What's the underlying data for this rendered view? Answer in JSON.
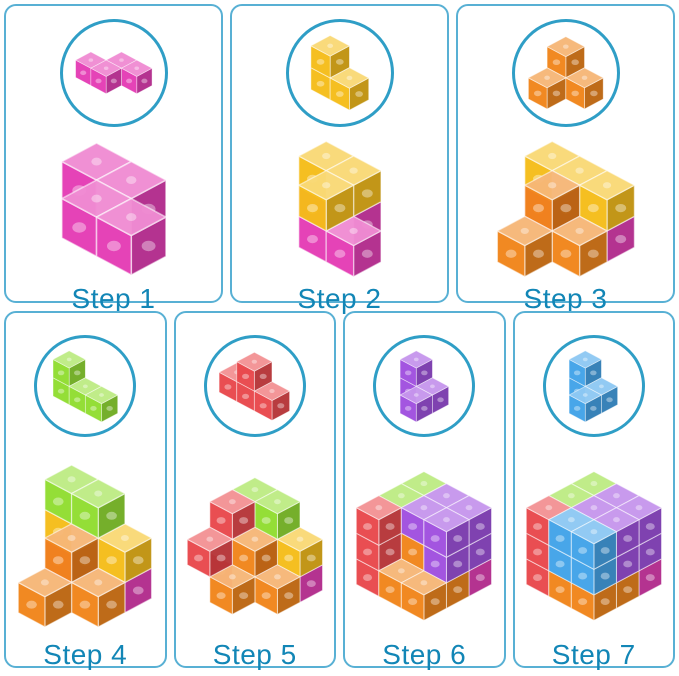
{
  "page": {
    "background": "#ffffff",
    "panel_border": "#58b0d4",
    "circle_border": "#2f9ec6",
    "label_color": "#1286b6"
  },
  "layout": {
    "row_counts": [
      3,
      4
    ]
  },
  "palette": {
    "pink": "#e337b2",
    "yellow": "#f5bb13",
    "orange": "#f08114",
    "green": "#8edc2b",
    "red": "#e84347",
    "purple": "#9d4ade",
    "blue": "#3da0e8"
  },
  "steps": [
    {
      "label": "Step 1",
      "piece_color": "pink",
      "piece": [
        [
          1,
          0,
          0
        ],
        [
          2,
          0,
          0
        ],
        [
          0,
          1,
          0
        ],
        [
          1,
          1,
          0
        ]
      ],
      "assembly": [
        [
          "pink",
          0,
          0,
          0
        ],
        [
          "pink",
          1,
          0,
          0
        ],
        [
          "pink",
          1,
          1,
          0
        ],
        [
          "pink",
          2,
          1,
          0
        ]
      ]
    },
    {
      "label": "Step 2",
      "piece_color": "yellow",
      "piece": [
        [
          0,
          0,
          0
        ],
        [
          0,
          0,
          1
        ],
        [
          1,
          0,
          0
        ]
      ],
      "assembly": [
        [
          "pink",
          0,
          0,
          0
        ],
        [
          "pink",
          1,
          0,
          0
        ],
        [
          "pink",
          1,
          1,
          0
        ],
        [
          "pink",
          2,
          1,
          0
        ],
        [
          "yellow",
          0,
          0,
          1
        ],
        [
          "yellow",
          1,
          0,
          1
        ],
        [
          "yellow",
          1,
          1,
          1
        ]
      ]
    },
    {
      "label": "Step 3",
      "piece_color": "orange",
      "piece": [
        [
          1,
          0,
          0
        ],
        [
          1,
          0,
          1
        ],
        [
          1,
          1,
          0
        ],
        [
          2,
          0,
          0
        ]
      ],
      "assembly": [
        [
          "pink",
          0,
          0,
          0
        ],
        [
          "pink",
          2,
          0,
          0
        ],
        [
          "yellow",
          0,
          0,
          1
        ],
        [
          "yellow",
          1,
          0,
          1
        ],
        [
          "yellow",
          2,
          0,
          1
        ],
        [
          "orange",
          1,
          1,
          0
        ],
        [
          "orange",
          1,
          1,
          1
        ],
        [
          "orange",
          2,
          1,
          0
        ],
        [
          "orange",
          1,
          2,
          0
        ]
      ]
    },
    {
      "label": "Step 4",
      "piece_color": "green",
      "piece": [
        [
          0,
          0,
          0
        ],
        [
          0,
          0,
          1
        ],
        [
          1,
          0,
          0
        ],
        [
          2,
          0,
          0
        ]
      ],
      "assembly": [
        [
          "pink",
          0,
          0,
          0
        ],
        [
          "pink",
          2,
          0,
          0
        ],
        [
          "yellow",
          0,
          0,
          1
        ],
        [
          "yellow",
          1,
          0,
          1
        ],
        [
          "yellow",
          2,
          0,
          1
        ],
        [
          "orange",
          1,
          1,
          0
        ],
        [
          "orange",
          1,
          1,
          1
        ],
        [
          "orange",
          2,
          1,
          0
        ],
        [
          "orange",
          1,
          2,
          0
        ],
        [
          "green",
          0,
          0,
          2
        ],
        [
          "green",
          1,
          0,
          2
        ]
      ]
    },
    {
      "label": "Step 5",
      "piece_color": "red",
      "piece": [
        [
          0,
          0,
          0
        ],
        [
          1,
          0,
          0
        ],
        [
          2,
          0,
          0
        ],
        [
          1,
          0,
          1
        ]
      ],
      "assembly": [
        [
          "pink",
          0,
          0,
          0
        ],
        [
          "pink",
          2,
          0,
          0
        ],
        [
          "yellow",
          0,
          0,
          1
        ],
        [
          "yellow",
          1,
          0,
          1
        ],
        [
          "yellow",
          2,
          0,
          1
        ],
        [
          "orange",
          1,
          1,
          0
        ],
        [
          "orange",
          1,
          1,
          1
        ],
        [
          "orange",
          2,
          1,
          0
        ],
        [
          "orange",
          1,
          2,
          0
        ],
        [
          "green",
          0,
          0,
          2
        ],
        [
          "green",
          1,
          0,
          2
        ],
        [
          "red",
          0,
          1,
          0
        ],
        [
          "red",
          0,
          1,
          1
        ],
        [
          "red",
          0,
          1,
          2
        ],
        [
          "red",
          0,
          2,
          1
        ]
      ]
    },
    {
      "label": "Step 6",
      "piece_color": "purple",
      "piece": [
        [
          0,
          0,
          0
        ],
        [
          0,
          0,
          1
        ],
        [
          1,
          0,
          0
        ],
        [
          1,
          1,
          0
        ]
      ],
      "assembly": [
        [
          "green",
          0,
          0,
          2
        ],
        [
          "green",
          0,
          1,
          2
        ],
        [
          "red",
          0,
          1,
          0
        ],
        [
          "red",
          0,
          1,
          1
        ],
        [
          "red",
          0,
          2,
          0
        ],
        [
          "red",
          0,
          2,
          1
        ],
        [
          "red",
          0,
          2,
          2
        ],
        [
          "purple",
          1,
          0,
          2
        ],
        [
          "purple",
          1,
          1,
          2
        ],
        [
          "purple",
          2,
          0,
          1
        ],
        [
          "purple",
          2,
          0,
          2
        ],
        [
          "purple",
          2,
          1,
          1
        ],
        [
          "purple",
          2,
          1,
          2
        ],
        [
          "pink",
          2,
          0,
          0
        ],
        [
          "orange",
          1,
          1,
          0
        ],
        [
          "orange",
          1,
          1,
          1
        ],
        [
          "orange",
          1,
          2,
          0
        ],
        [
          "orange",
          2,
          1,
          0
        ],
        [
          "orange",
          2,
          2,
          0
        ]
      ]
    },
    {
      "label": "Step 7",
      "piece_color": "blue",
      "piece": [
        [
          0,
          0,
          0
        ],
        [
          0,
          0,
          1
        ],
        [
          1,
          0,
          0
        ],
        [
          1,
          1,
          0
        ]
      ],
      "assembly": [
        [
          "green",
          0,
          0,
          2
        ],
        [
          "green",
          0,
          1,
          2
        ],
        [
          "red",
          0,
          1,
          0
        ],
        [
          "red",
          0,
          1,
          1
        ],
        [
          "red",
          0,
          2,
          0
        ],
        [
          "red",
          0,
          2,
          1
        ],
        [
          "red",
          0,
          2,
          2
        ],
        [
          "purple",
          1,
          0,
          2
        ],
        [
          "purple",
          1,
          1,
          2
        ],
        [
          "purple",
          2,
          0,
          1
        ],
        [
          "purple",
          2,
          0,
          2
        ],
        [
          "purple",
          2,
          1,
          1
        ],
        [
          "purple",
          2,
          1,
          2
        ],
        [
          "pink",
          2,
          0,
          0
        ],
        [
          "orange",
          1,
          1,
          0
        ],
        [
          "orange",
          1,
          1,
          1
        ],
        [
          "orange",
          1,
          2,
          0
        ],
        [
          "orange",
          2,
          1,
          0
        ],
        [
          "orange",
          2,
          2,
          0
        ],
        [
          "blue",
          1,
          2,
          1
        ],
        [
          "blue",
          1,
          2,
          2
        ],
        [
          "blue",
          2,
          2,
          1
        ],
        [
          "blue",
          2,
          2,
          2
        ]
      ]
    }
  ]
}
